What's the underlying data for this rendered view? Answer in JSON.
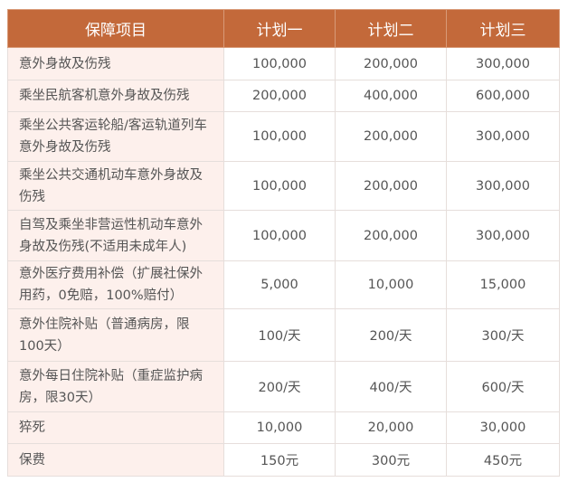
{
  "header": [
    "保障项目",
    "计划一",
    "计划二",
    "计划三"
  ],
  "rows": [
    {
      "item": "意外身故及伤残",
      "values": [
        "100,000",
        "200,000",
        "300,000"
      ]
    },
    {
      "item": "乘坐民航客机意外身故及伤残",
      "values": [
        "200,000",
        "400,000",
        "600,000"
      ]
    },
    {
      "item": "乘坐公共客运轮船/客运轨道列车意外身故及伤残",
      "values": [
        "100,000",
        "200,000",
        "300,000"
      ]
    },
    {
      "item": "乘坐公共交通机动车意外身故及伤残",
      "values": [
        "100,000",
        "200,000",
        "300,000"
      ]
    },
    {
      "item": "自驾及乘坐非营运性机动车意外身故及伤残(不适用未成年人)",
      "values": [
        "100,000",
        "200,000",
        "300,000"
      ]
    },
    {
      "item": "意外医疗费用补偿（扩展社保外用药，0免赔，100%赔付）",
      "values": [
        "5,000",
        "10,000",
        "15,000"
      ]
    },
    {
      "item": "意外住院补贴（普通病房，限100天）",
      "values": [
        "100/天",
        "200/天",
        "300/天"
      ]
    },
    {
      "item": "意外每日住院补贴（重症监护病房，限30天）",
      "values": [
        "200/天",
        "400/天",
        "600/天"
      ]
    },
    {
      "item": "猝死",
      "values": [
        "10,000",
        "20,000",
        "30,000"
      ]
    },
    {
      "item": "保费",
      "values": [
        "150元",
        "300元",
        "450元"
      ]
    }
  ],
  "colors": {
    "header_bg": "#c3693a",
    "item_bg": "#fdf0ec"
  }
}
